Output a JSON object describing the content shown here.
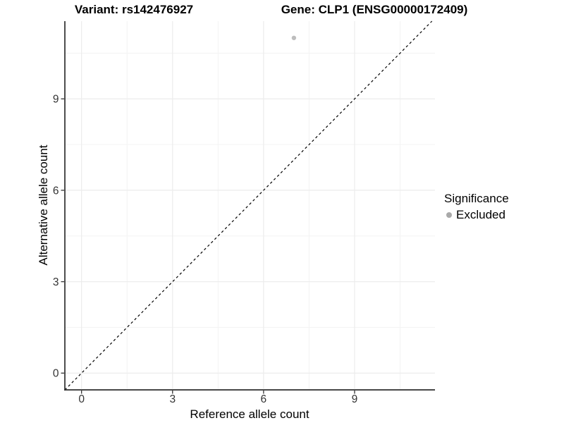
{
  "chart_data": {
    "type": "scatter",
    "titles": {
      "left": "Variant: rs142476927",
      "right": "Gene: CLP1 (ENSG00000172409)"
    },
    "xlabel": "Reference allele count",
    "ylabel": "Alternative allele count",
    "x_ticks": [
      0,
      3,
      6,
      9
    ],
    "y_ticks": [
      0,
      3,
      6,
      9
    ],
    "x_minor": [
      1.5,
      4.5,
      7.5,
      10.5
    ],
    "y_minor": [
      1.5,
      4.5,
      7.5,
      10.5
    ],
    "xlim": [
      -0.55,
      11.65
    ],
    "ylim": [
      -0.55,
      11.55
    ],
    "grid": true,
    "reference_line": {
      "type": "identity",
      "slope": 1,
      "intercept": 0,
      "style": "dashed",
      "color": "#000000"
    },
    "series": [
      {
        "name": "Excluded",
        "color": "#bdbdbd",
        "points": [
          {
            "x": 7,
            "y": 11
          }
        ]
      }
    ],
    "legend": {
      "title": "Significance",
      "position": "right",
      "items": [
        {
          "label": "Excluded",
          "color": "#a9a9a9",
          "marker": "circle"
        }
      ]
    },
    "colors": {
      "axis_line": "#2e2e2e",
      "tick_mark": "#333333",
      "tick_label": "#333333",
      "grid_major": "#ececec",
      "grid_minor": "#f3f3f3",
      "background": "#ffffff"
    }
  }
}
